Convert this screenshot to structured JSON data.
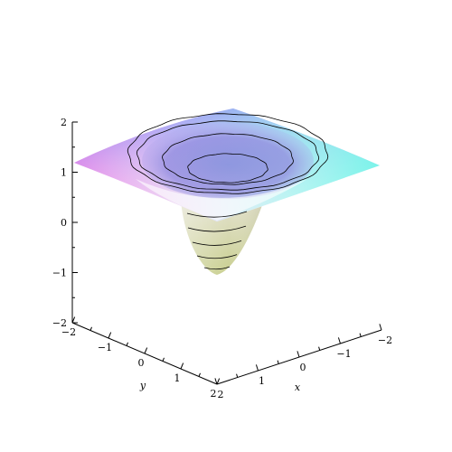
{
  "chart_data": {
    "type": "surface3d",
    "z_axis": {
      "ticks": [
        2,
        1,
        0,
        -1,
        -2
      ],
      "tick_labels": [
        "2",
        "1",
        "0",
        "−1",
        "−2"
      ],
      "range": [
        -2,
        2
      ]
    },
    "y_axis": {
      "label": "y",
      "ticks": [
        -2,
        -1,
        0,
        1,
        2
      ],
      "tick_labels": [
        "−2",
        "−1",
        "0",
        "1",
        "2"
      ],
      "range": [
        -2,
        2
      ]
    },
    "x_axis": {
      "label": "x",
      "ticks": [
        2,
        1,
        0,
        -1,
        -2
      ],
      "tick_labels": [
        "2",
        "1",
        "0",
        "−1",
        "−2"
      ],
      "range": [
        -2,
        2
      ]
    },
    "surface": {
      "shape": "radial funnel",
      "z_center": -1.0,
      "z_rim": 1.5,
      "contour_levels": [
        1.4,
        1.2,
        0.8,
        0.2,
        -0.2,
        -0.5,
        -0.8
      ],
      "colors": {
        "corner_left": "#f36be0",
        "corner_top": "#6f63f0",
        "corner_right": "#6ff6e8",
        "corner_front": "#fafafa",
        "funnel_bottom": "#c9cf90",
        "funnel_top": "#e7e4d7"
      }
    }
  }
}
